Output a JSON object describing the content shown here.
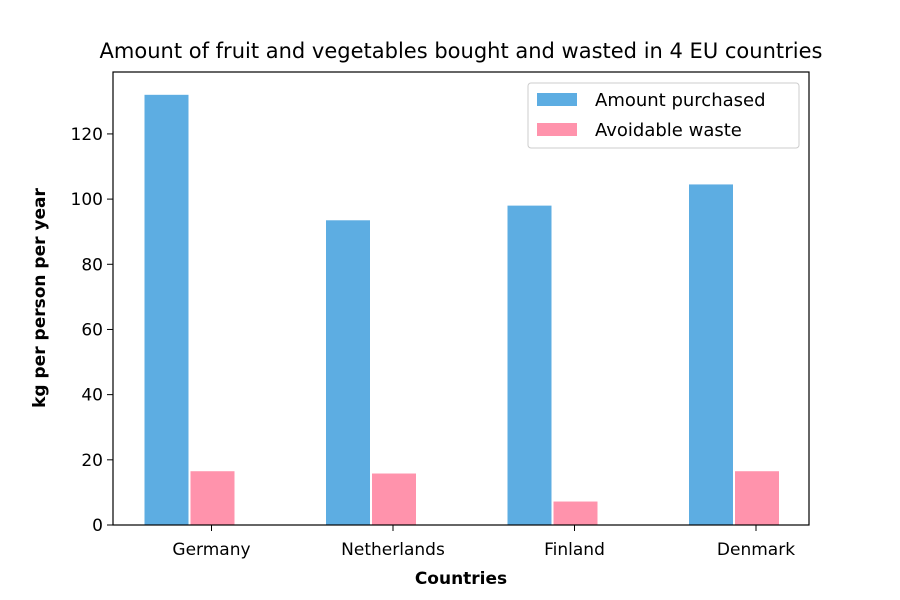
{
  "chart_data": {
    "type": "bar",
    "title": "Amount of fruit and vegetables bought and wasted in 4 EU countries",
    "xlabel": "Countries",
    "ylabel": "kg per person per year",
    "categories": [
      "Germany",
      "Netherlands",
      "Finland",
      "Denmark"
    ],
    "series": [
      {
        "name": "Amount purchased",
        "color": "#5DADE2",
        "values": [
          132,
          93.5,
          98,
          104.5
        ]
      },
      {
        "name": "Avoidable waste",
        "color": "#FF93AC",
        "values": [
          16.5,
          15.8,
          7.2,
          16.5
        ]
      }
    ],
    "ylim": [
      0,
      139
    ],
    "yticks": [
      0,
      20,
      40,
      60,
      80,
      100,
      120
    ],
    "grid": false,
    "legend_position": "top-right"
  }
}
